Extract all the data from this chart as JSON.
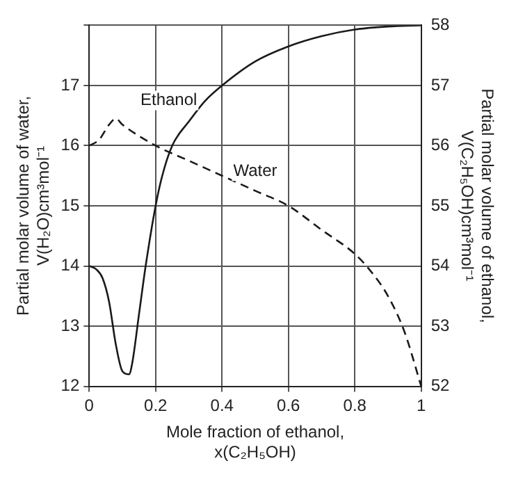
{
  "chart_data": {
    "type": "line",
    "xlabel": "Mole fraction of ethanol, x(C₂H₅OH)",
    "ylabel": "Partial molar volume of water, V(H₂O)cm³mol⁻¹",
    "y2label": "Partial molar volume of ethanol, V(C₂H₅OH)cm³mol⁻¹",
    "xlim": [
      0,
      1
    ],
    "xticks": [
      0,
      0.2,
      0.4,
      0.6,
      0.8,
      1
    ],
    "ylim": [
      12,
      18
    ],
    "yticks": [
      12,
      13,
      14,
      15,
      16,
      17,
      {
        "value": 18,
        "label": null
      }
    ],
    "y2lim": [
      52,
      58
    ],
    "y2ticks": [
      52,
      53,
      54,
      55,
      56,
      57,
      58
    ],
    "grid": true,
    "legend": false,
    "marker": "none",
    "series": [
      {
        "name": "Ethanol",
        "color": "#1a1a1a",
        "axis": "y2",
        "line_style": "solid",
        "x": [
          0,
          0.02,
          0.04,
          0.06,
          0.08,
          0.1,
          0.12,
          0.13,
          0.15,
          0.17,
          0.2,
          0.22,
          0.25,
          0.3,
          0.35,
          0.4,
          0.5,
          0.6,
          0.7,
          0.8,
          0.9,
          1
        ],
        "values": [
          54,
          53.95,
          53.8,
          53.4,
          52.7,
          52.25,
          52.2,
          52.4,
          53.2,
          54,
          55,
          55.5,
          56,
          56.4,
          56.75,
          57,
          57.4,
          57.65,
          57.82,
          57.93,
          57.98,
          58
        ]
      },
      {
        "name": "Water",
        "color": "#1a1a1a",
        "line_style": "dashed",
        "x": [
          0,
          0.03,
          0.06,
          0.08,
          0.1,
          0.2,
          0.3,
          0.4,
          0.5,
          0.6,
          0.7,
          0.8,
          0.85,
          0.9,
          0.95,
          1
        ],
        "values": [
          16,
          16.1,
          16.35,
          16.45,
          16.35,
          16,
          15.75,
          15.5,
          15.25,
          15,
          14.6,
          14.2,
          13.9,
          13.5,
          12.9,
          12
        ]
      }
    ]
  }
}
